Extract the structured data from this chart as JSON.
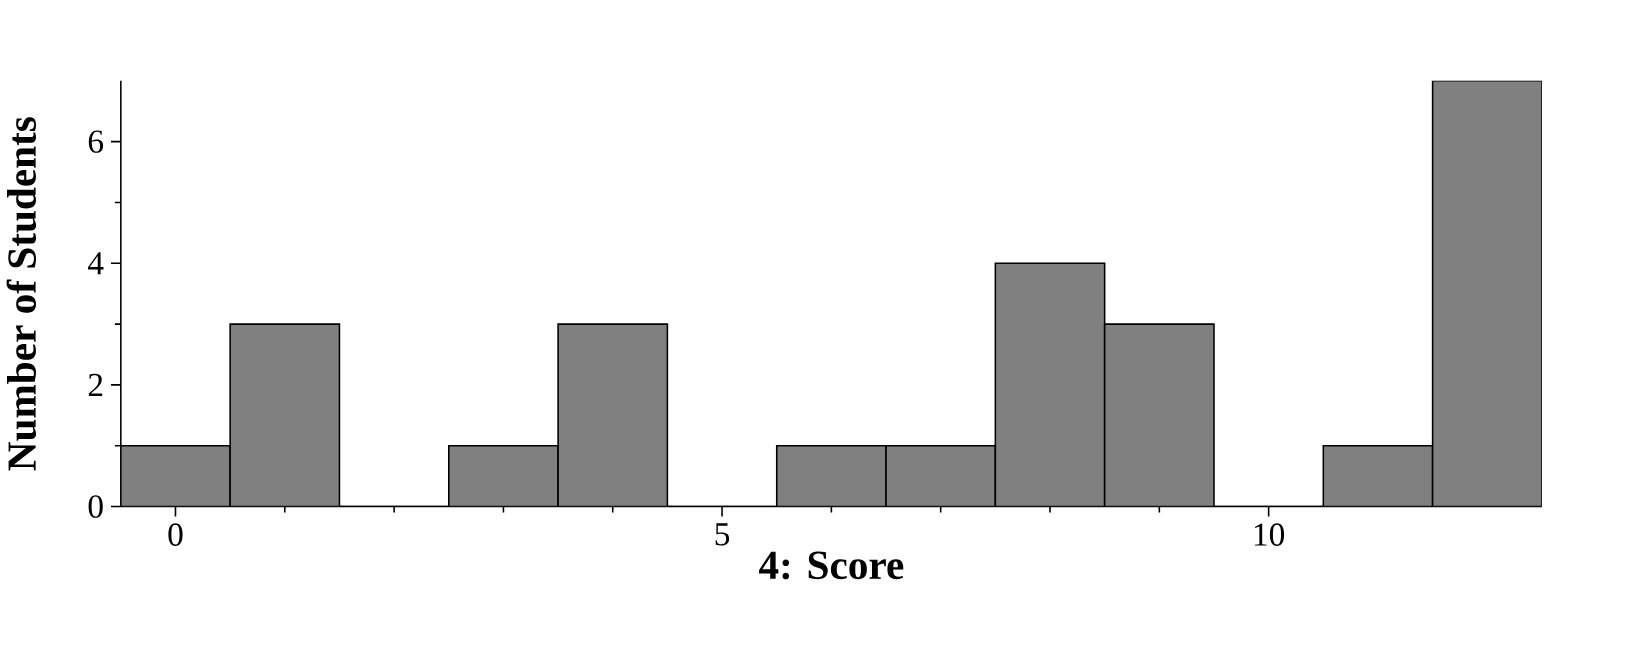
{
  "chart_data": {
    "type": "histogram",
    "xlabel": "4: Score",
    "ylabel": "Number of Students",
    "bins": [
      -0.5,
      0.5,
      1.5,
      2.5,
      3.5,
      4.5,
      5.5,
      6.5,
      7.5,
      8.5,
      9.5,
      10.5,
      11.5,
      12.5
    ],
    "values": [
      1,
      3,
      0,
      1,
      3,
      0,
      1,
      1,
      4,
      3,
      0,
      1,
      7
    ],
    "color": "#808080",
    "xlim": [
      -0.5,
      12.5
    ],
    "ylim": [
      0,
      7
    ],
    "xticks": [
      0,
      5,
      10
    ],
    "yticks": [
      0,
      2,
      4,
      6
    ],
    "grid": false
  }
}
